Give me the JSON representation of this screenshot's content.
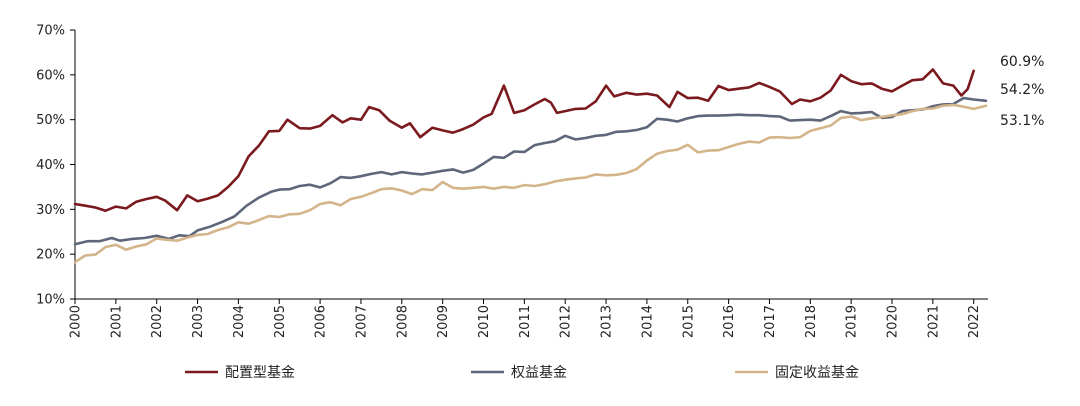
{
  "chart_data": {
    "type": "line",
    "title": "",
    "xlabel": "",
    "ylabel": "",
    "ylim": [
      10,
      70
    ],
    "y_ticks": [
      "10%",
      "20%",
      "30%",
      "40%",
      "50%",
      "60%",
      "70%"
    ],
    "x_ticks": [
      "2000",
      "2001",
      "2002",
      "2003",
      "2004",
      "2005",
      "2006",
      "2007",
      "2008",
      "2009",
      "2010",
      "2011",
      "2012",
      "2013",
      "2014",
      "2015",
      "2016",
      "2017",
      "2018",
      "2019",
      "2020",
      "2021",
      "2022"
    ],
    "x_range": [
      2000.0,
      2022.35
    ],
    "grid": false,
    "legend_position": "bottom",
    "series": [
      {
        "name": "配置型基金",
        "color": "#7b1a1e",
        "end_label": "60.9%",
        "points": [
          [
            2000.0,
            31.2
          ],
          [
            2000.25,
            30.8
          ],
          [
            2000.5,
            30.4
          ],
          [
            2000.75,
            29.7
          ],
          [
            2001.0,
            30.6
          ],
          [
            2001.25,
            30.2
          ],
          [
            2001.5,
            31.7
          ],
          [
            2001.75,
            32.3
          ],
          [
            2002.0,
            32.8
          ],
          [
            2002.2,
            32.0
          ],
          [
            2002.5,
            29.8
          ],
          [
            2002.75,
            33.1
          ],
          [
            2003.0,
            31.8
          ],
          [
            2003.25,
            32.4
          ],
          [
            2003.5,
            33.1
          ],
          [
            2003.75,
            35.0
          ],
          [
            2004.0,
            37.4
          ],
          [
            2004.25,
            41.8
          ],
          [
            2004.5,
            44.2
          ],
          [
            2004.75,
            47.4
          ],
          [
            2005.0,
            47.5
          ],
          [
            2005.2,
            50.0
          ],
          [
            2005.5,
            48.1
          ],
          [
            2005.75,
            48.0
          ],
          [
            2006.0,
            48.6
          ],
          [
            2006.3,
            51.0
          ],
          [
            2006.55,
            49.4
          ],
          [
            2006.75,
            50.3
          ],
          [
            2007.0,
            50.0
          ],
          [
            2007.2,
            52.8
          ],
          [
            2007.45,
            52.1
          ],
          [
            2007.7,
            49.8
          ],
          [
            2008.0,
            48.2
          ],
          [
            2008.2,
            49.2
          ],
          [
            2008.45,
            46.1
          ],
          [
            2008.75,
            48.2
          ],
          [
            2009.0,
            47.6
          ],
          [
            2009.25,
            47.1
          ],
          [
            2009.5,
            47.9
          ],
          [
            2009.75,
            48.9
          ],
          [
            2010.0,
            50.5
          ],
          [
            2010.2,
            51.3
          ],
          [
            2010.5,
            57.6
          ],
          [
            2010.75,
            51.5
          ],
          [
            2011.0,
            52.1
          ],
          [
            2011.25,
            53.4
          ],
          [
            2011.5,
            54.6
          ],
          [
            2011.65,
            53.8
          ],
          [
            2011.8,
            51.5
          ],
          [
            2012.0,
            51.9
          ],
          [
            2012.25,
            52.4
          ],
          [
            2012.5,
            52.5
          ],
          [
            2012.75,
            54.1
          ],
          [
            2013.0,
            57.6
          ],
          [
            2013.2,
            55.2
          ],
          [
            2013.5,
            56.0
          ],
          [
            2013.75,
            55.6
          ],
          [
            2014.0,
            55.8
          ],
          [
            2014.25,
            55.4
          ],
          [
            2014.55,
            52.8
          ],
          [
            2014.75,
            56.2
          ],
          [
            2015.0,
            54.8
          ],
          [
            2015.25,
            54.9
          ],
          [
            2015.5,
            54.2
          ],
          [
            2015.75,
            57.5
          ],
          [
            2016.0,
            56.6
          ],
          [
            2016.25,
            56.9
          ],
          [
            2016.5,
            57.2
          ],
          [
            2016.75,
            58.2
          ],
          [
            2017.0,
            57.3
          ],
          [
            2017.25,
            56.3
          ],
          [
            2017.55,
            53.5
          ],
          [
            2017.75,
            54.5
          ],
          [
            2018.0,
            54.1
          ],
          [
            2018.25,
            54.9
          ],
          [
            2018.5,
            56.5
          ],
          [
            2018.75,
            60.0
          ],
          [
            2019.0,
            58.6
          ],
          [
            2019.25,
            57.9
          ],
          [
            2019.5,
            58.1
          ],
          [
            2019.75,
            56.9
          ],
          [
            2020.0,
            56.3
          ],
          [
            2020.25,
            57.6
          ],
          [
            2020.5,
            58.8
          ],
          [
            2020.75,
            59.0
          ],
          [
            2021.0,
            61.2
          ],
          [
            2021.25,
            58.1
          ],
          [
            2021.5,
            57.6
          ],
          [
            2021.7,
            55.4
          ],
          [
            2021.85,
            56.8
          ],
          [
            2022.0,
            60.9
          ]
        ]
      },
      {
        "name": "权益基金",
        "color": "#5e6679",
        "end_label": "54.2%",
        "points": [
          [
            2000.0,
            22.2
          ],
          [
            2000.3,
            22.9
          ],
          [
            2000.6,
            22.9
          ],
          [
            2000.9,
            23.6
          ],
          [
            2001.1,
            23.0
          ],
          [
            2001.4,
            23.4
          ],
          [
            2001.7,
            23.6
          ],
          [
            2002.0,
            24.1
          ],
          [
            2002.3,
            23.4
          ],
          [
            2002.55,
            24.2
          ],
          [
            2002.8,
            24.0
          ],
          [
            2003.0,
            25.3
          ],
          [
            2003.3,
            26.1
          ],
          [
            2003.6,
            27.2
          ],
          [
            2003.9,
            28.4
          ],
          [
            2004.2,
            30.8
          ],
          [
            2004.5,
            32.6
          ],
          [
            2004.8,
            33.9
          ],
          [
            2005.0,
            34.4
          ],
          [
            2005.25,
            34.5
          ],
          [
            2005.5,
            35.2
          ],
          [
            2005.75,
            35.5
          ],
          [
            2006.0,
            34.9
          ],
          [
            2006.25,
            35.8
          ],
          [
            2006.5,
            37.2
          ],
          [
            2006.75,
            37.0
          ],
          [
            2007.0,
            37.4
          ],
          [
            2007.25,
            37.9
          ],
          [
            2007.5,
            38.3
          ],
          [
            2007.75,
            37.8
          ],
          [
            2008.0,
            38.3
          ],
          [
            2008.25,
            38.0
          ],
          [
            2008.5,
            37.8
          ],
          [
            2008.75,
            38.2
          ],
          [
            2009.0,
            38.6
          ],
          [
            2009.25,
            38.9
          ],
          [
            2009.5,
            38.2
          ],
          [
            2009.75,
            38.8
          ],
          [
            2010.0,
            40.2
          ],
          [
            2010.25,
            41.7
          ],
          [
            2010.5,
            41.5
          ],
          [
            2010.75,
            42.9
          ],
          [
            2011.0,
            42.8
          ],
          [
            2011.25,
            44.3
          ],
          [
            2011.5,
            44.8
          ],
          [
            2011.75,
            45.2
          ],
          [
            2012.0,
            46.4
          ],
          [
            2012.25,
            45.6
          ],
          [
            2012.5,
            45.9
          ],
          [
            2012.75,
            46.4
          ],
          [
            2013.0,
            46.6
          ],
          [
            2013.25,
            47.3
          ],
          [
            2013.5,
            47.4
          ],
          [
            2013.75,
            47.7
          ],
          [
            2014.0,
            48.3
          ],
          [
            2014.25,
            50.2
          ],
          [
            2014.5,
            50.0
          ],
          [
            2014.75,
            49.6
          ],
          [
            2015.0,
            50.3
          ],
          [
            2015.25,
            50.8
          ],
          [
            2015.5,
            50.9
          ],
          [
            2015.75,
            50.9
          ],
          [
            2016.0,
            51.0
          ],
          [
            2016.25,
            51.1
          ],
          [
            2016.5,
            51.0
          ],
          [
            2016.75,
            51.0
          ],
          [
            2017.0,
            50.8
          ],
          [
            2017.25,
            50.7
          ],
          [
            2017.5,
            49.8
          ],
          [
            2017.75,
            49.9
          ],
          [
            2018.0,
            50.0
          ],
          [
            2018.25,
            49.8
          ],
          [
            2018.5,
            50.8
          ],
          [
            2018.75,
            51.9
          ],
          [
            2019.0,
            51.4
          ],
          [
            2019.25,
            51.5
          ],
          [
            2019.5,
            51.7
          ],
          [
            2019.75,
            50.4
          ],
          [
            2020.0,
            50.6
          ],
          [
            2020.25,
            51.9
          ],
          [
            2020.5,
            52.1
          ],
          [
            2020.75,
            52.3
          ],
          [
            2021.0,
            53.0
          ],
          [
            2021.25,
            53.4
          ],
          [
            2021.5,
            53.5
          ],
          [
            2021.75,
            54.8
          ],
          [
            2022.0,
            54.5
          ],
          [
            2022.3,
            54.2
          ]
        ]
      },
      {
        "name": "固定收益基金",
        "color": "#d4b48a",
        "end_label": "53.1%",
        "points": [
          [
            2000.0,
            18.2
          ],
          [
            2000.25,
            19.7
          ],
          [
            2000.5,
            19.9
          ],
          [
            2000.75,
            21.6
          ],
          [
            2001.0,
            22.1
          ],
          [
            2001.25,
            21.0
          ],
          [
            2001.5,
            21.7
          ],
          [
            2001.75,
            22.2
          ],
          [
            2002.0,
            23.5
          ],
          [
            2002.25,
            23.2
          ],
          [
            2002.5,
            23.0
          ],
          [
            2002.75,
            23.7
          ],
          [
            2003.0,
            24.3
          ],
          [
            2003.25,
            24.5
          ],
          [
            2003.5,
            25.4
          ],
          [
            2003.75,
            26.0
          ],
          [
            2004.0,
            27.1
          ],
          [
            2004.25,
            26.8
          ],
          [
            2004.5,
            27.6
          ],
          [
            2004.75,
            28.5
          ],
          [
            2005.0,
            28.3
          ],
          [
            2005.25,
            28.9
          ],
          [
            2005.5,
            29.0
          ],
          [
            2005.75,
            29.8
          ],
          [
            2006.0,
            31.2
          ],
          [
            2006.25,
            31.6
          ],
          [
            2006.5,
            30.9
          ],
          [
            2006.75,
            32.3
          ],
          [
            2007.0,
            32.8
          ],
          [
            2007.25,
            33.6
          ],
          [
            2007.5,
            34.5
          ],
          [
            2007.75,
            34.7
          ],
          [
            2008.0,
            34.2
          ],
          [
            2008.25,
            33.4
          ],
          [
            2008.5,
            34.5
          ],
          [
            2008.75,
            34.3
          ],
          [
            2009.0,
            36.1
          ],
          [
            2009.25,
            34.8
          ],
          [
            2009.5,
            34.6
          ],
          [
            2009.75,
            34.8
          ],
          [
            2010.0,
            35.0
          ],
          [
            2010.25,
            34.6
          ],
          [
            2010.5,
            35.0
          ],
          [
            2010.75,
            34.8
          ],
          [
            2011.0,
            35.4
          ],
          [
            2011.25,
            35.2
          ],
          [
            2011.5,
            35.6
          ],
          [
            2011.75,
            36.2
          ],
          [
            2012.0,
            36.6
          ],
          [
            2012.25,
            36.9
          ],
          [
            2012.5,
            37.1
          ],
          [
            2012.75,
            37.8
          ],
          [
            2013.0,
            37.6
          ],
          [
            2013.25,
            37.7
          ],
          [
            2013.5,
            38.1
          ],
          [
            2013.75,
            39.0
          ],
          [
            2014.0,
            40.9
          ],
          [
            2014.25,
            42.4
          ],
          [
            2014.5,
            43.0
          ],
          [
            2014.75,
            43.3
          ],
          [
            2015.0,
            44.4
          ],
          [
            2015.25,
            42.7
          ],
          [
            2015.5,
            43.1
          ],
          [
            2015.75,
            43.2
          ],
          [
            2016.0,
            43.9
          ],
          [
            2016.25,
            44.6
          ],
          [
            2016.5,
            45.1
          ],
          [
            2016.75,
            44.9
          ],
          [
            2017.0,
            46.0
          ],
          [
            2017.25,
            46.1
          ],
          [
            2017.5,
            45.9
          ],
          [
            2017.75,
            46.1
          ],
          [
            2018.0,
            47.5
          ],
          [
            2018.25,
            48.1
          ],
          [
            2018.5,
            48.7
          ],
          [
            2018.75,
            50.4
          ],
          [
            2019.0,
            50.7
          ],
          [
            2019.25,
            49.9
          ],
          [
            2019.5,
            50.3
          ],
          [
            2019.75,
            50.6
          ],
          [
            2020.0,
            51.0
          ],
          [
            2020.25,
            51.2
          ],
          [
            2020.5,
            51.9
          ],
          [
            2020.75,
            52.4
          ],
          [
            2021.0,
            52.5
          ],
          [
            2021.25,
            53.1
          ],
          [
            2021.5,
            53.3
          ],
          [
            2021.75,
            52.9
          ],
          [
            2022.0,
            52.4
          ],
          [
            2022.3,
            53.1
          ]
        ]
      }
    ]
  }
}
